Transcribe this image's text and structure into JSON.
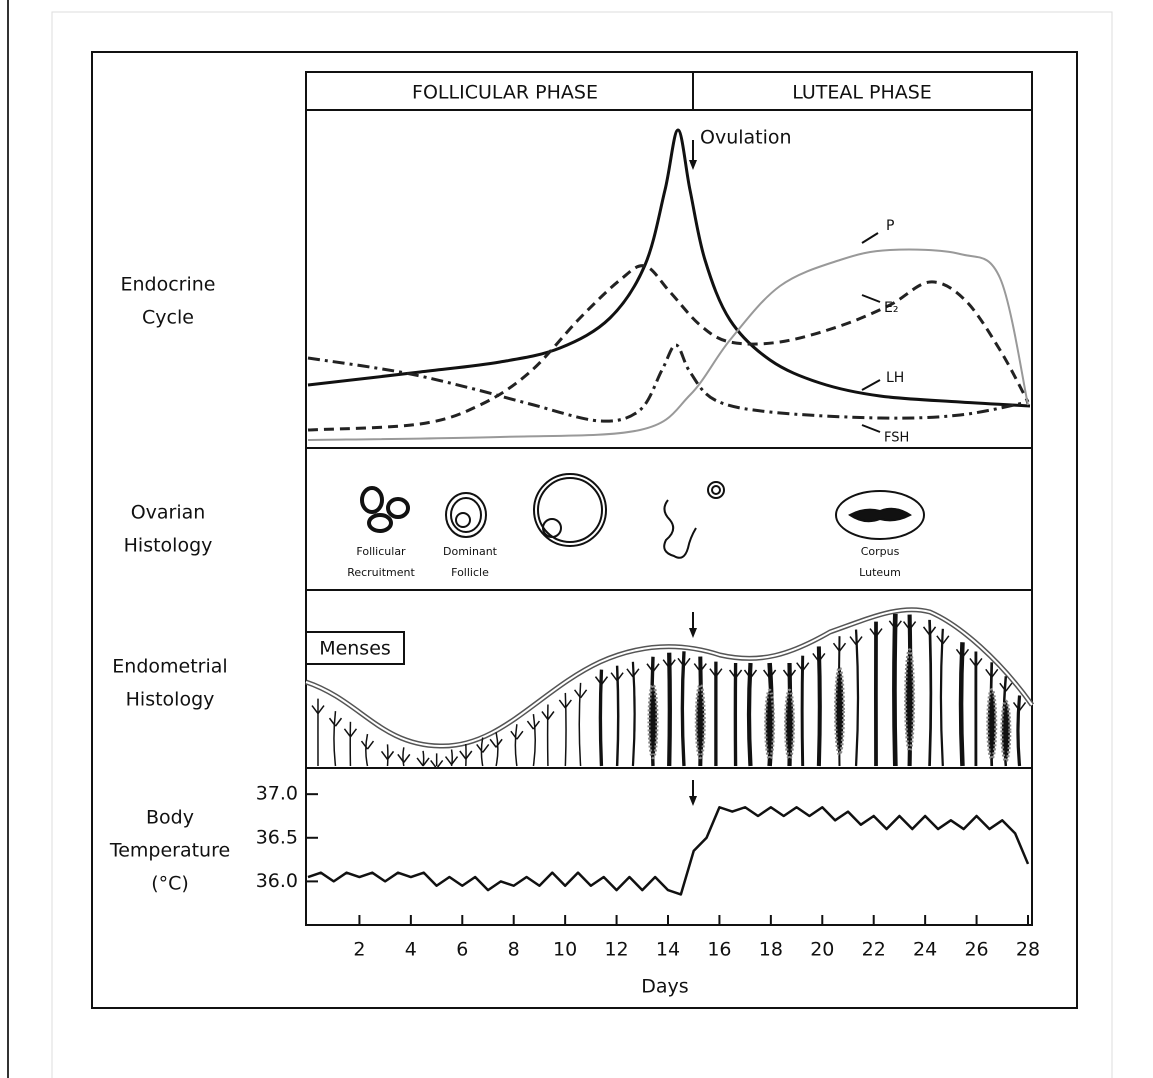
{
  "phases": [
    "FOLLICULAR PHASE",
    "LUTEAL PHASE"
  ],
  "row_labels": [
    [
      "Endocrine",
      "Cycle"
    ],
    [
      "Ovarian",
      "Histology"
    ],
    [
      "Endometrial",
      "Histology"
    ],
    [
      "Body",
      "Temperature",
      "(°C)"
    ]
  ],
  "endocrine": {
    "annotation": "Ovulation",
    "curve_labels": [
      "P",
      "E₂",
      "LH",
      "FSH"
    ]
  },
  "ovarian": {
    "stage_labels": [
      [
        "Follicular",
        "Recruitment"
      ],
      [
        "Dominant",
        "Follicle"
      ],
      [
        "Corpus",
        "Luteum"
      ]
    ]
  },
  "endometrial": {
    "label": "Menses"
  },
  "chart_data": {
    "type": "line",
    "xlabel": "Days",
    "color": "#111111",
    "xlim": [
      0,
      28
    ],
    "xticks": [
      2,
      4,
      6,
      8,
      10,
      12,
      14,
      16,
      18,
      20,
      22,
      24,
      26,
      28
    ],
    "ylim": [
      35.5,
      37.3
    ],
    "yticks": [
      {
        "value": 36,
        "label": "36.0"
      },
      36.5,
      {
        "value": 37,
        "label": "37.0"
      }
    ],
    "x": [
      0,
      0.5,
      1,
      1.5,
      2,
      2.5,
      3,
      3.5,
      4,
      4.5,
      5,
      5.5,
      6,
      6.5,
      7,
      7.5,
      8,
      8.5,
      9,
      9.5,
      10,
      10.5,
      11,
      11.5,
      12,
      12.5,
      13,
      13.5,
      14,
      14.5,
      15,
      15.5,
      16,
      16.5,
      17,
      17.5,
      18,
      18.5,
      19,
      19.5,
      20,
      20.5,
      21,
      21.5,
      22,
      22.5,
      23,
      23.5,
      24,
      24.5,
      25,
      25.5,
      26,
      26.5,
      27,
      27.5,
      28
    ],
    "values": [
      36.05,
      36.1,
      36.0,
      36.1,
      36.05,
      36.1,
      36.0,
      36.1,
      36.05,
      36.1,
      35.95,
      36.05,
      35.95,
      36.05,
      35.9,
      36.0,
      35.95,
      36.05,
      35.95,
      36.1,
      35.95,
      36.1,
      35.95,
      36.05,
      35.9,
      36.05,
      35.9,
      36.05,
      35.9,
      35.85,
      36.35,
      36.5,
      36.85,
      36.8,
      36.85,
      36.75,
      36.85,
      36.75,
      36.85,
      36.75,
      36.85,
      36.7,
      36.8,
      36.65,
      36.75,
      36.6,
      36.75,
      36.6,
      36.75,
      36.6,
      36.7,
      36.6,
      36.75,
      36.6,
      36.7,
      36.55,
      36.2
    ]
  }
}
